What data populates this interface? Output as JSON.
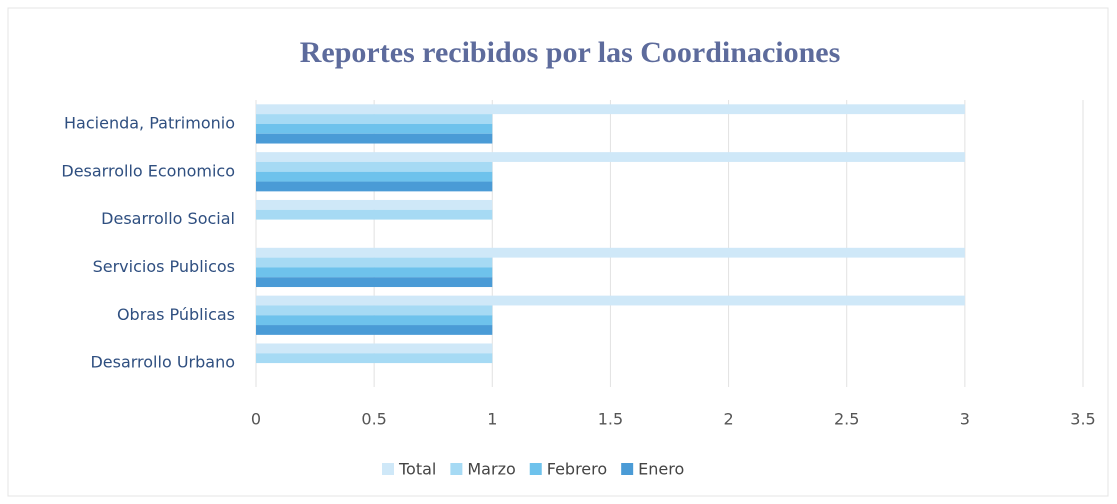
{
  "chart_data": {
    "type": "bar",
    "orientation": "horizontal",
    "title": "Reportes recibidos por las Coordinaciones",
    "categories": [
      "Hacienda, Patrimonio",
      "Desarrollo Economico",
      "Desarrollo Social",
      "Servicios Publicos",
      "Obras Públicas",
      "Desarrollo Urbano"
    ],
    "series": [
      {
        "name": "Total",
        "color": "#cfe8f8",
        "values": [
          3,
          3,
          1,
          3,
          3,
          1
        ]
      },
      {
        "name": "Marzo",
        "color": "#a6daf4",
        "values": [
          1,
          1,
          1,
          1,
          1,
          1
        ]
      },
      {
        "name": "Febrero",
        "color": "#6ec2ec",
        "values": [
          1,
          1,
          0,
          1,
          1,
          0
        ]
      },
      {
        "name": "Enero",
        "color": "#4a9bd6",
        "values": [
          1,
          1,
          0,
          1,
          1,
          0
        ]
      }
    ],
    "xlim": [
      0,
      3.5
    ],
    "xticks": [
      0,
      0.5,
      1,
      1.5,
      2,
      2.5,
      3,
      3.5
    ],
    "grid": true,
    "legend": "bottom"
  }
}
